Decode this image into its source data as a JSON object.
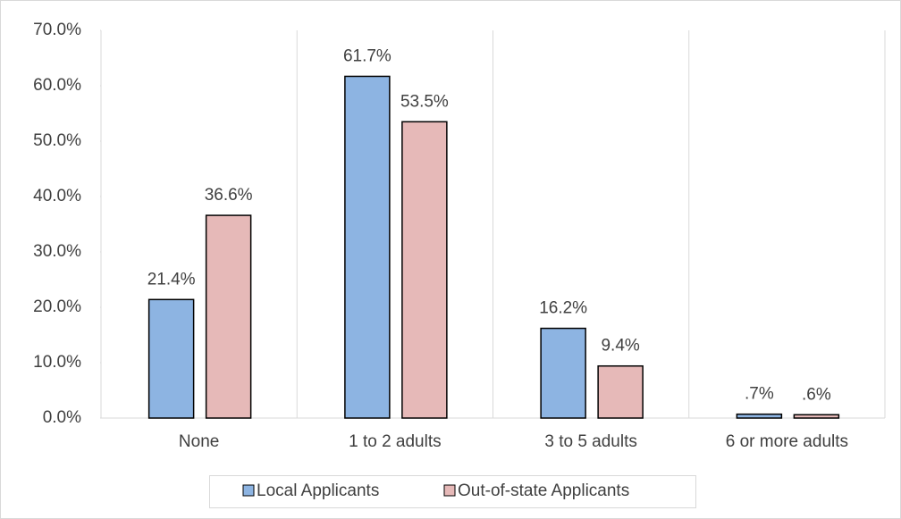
{
  "chart_data": {
    "type": "bar",
    "categories": [
      "None",
      "1 to 2 adults",
      "3 to 5 adults",
      "6 or more adults"
    ],
    "series": [
      {
        "name": "Local Applicants",
        "color": "#8db4e2",
        "values": [
          21.4,
          61.7,
          16.2,
          0.7
        ],
        "value_labels": [
          "21.4%",
          "61.7%",
          "16.2%",
          ".7%"
        ]
      },
      {
        "name": "Out-of-state Applicants",
        "color": "#e6b9b8",
        "values": [
          36.6,
          53.5,
          9.4,
          0.6
        ],
        "value_labels": [
          "36.6%",
          "53.5%",
          "9.4%",
          ".6%"
        ]
      }
    ],
    "ylim": [
      0,
      70
    ],
    "yticks": [
      {
        "value": 0,
        "label": "0.0%"
      },
      {
        "value": 10,
        "label": "10.0%"
      },
      {
        "value": 20,
        "label": "20.0%"
      },
      {
        "value": 30,
        "label": "30.0%"
      },
      {
        "value": 40,
        "label": "40.0%"
      },
      {
        "value": 50,
        "label": "50.0%"
      },
      {
        "value": 60,
        "label": "60.0%"
      },
      {
        "value": 70,
        "label": "70.0%"
      }
    ],
    "legend": "bottom"
  }
}
